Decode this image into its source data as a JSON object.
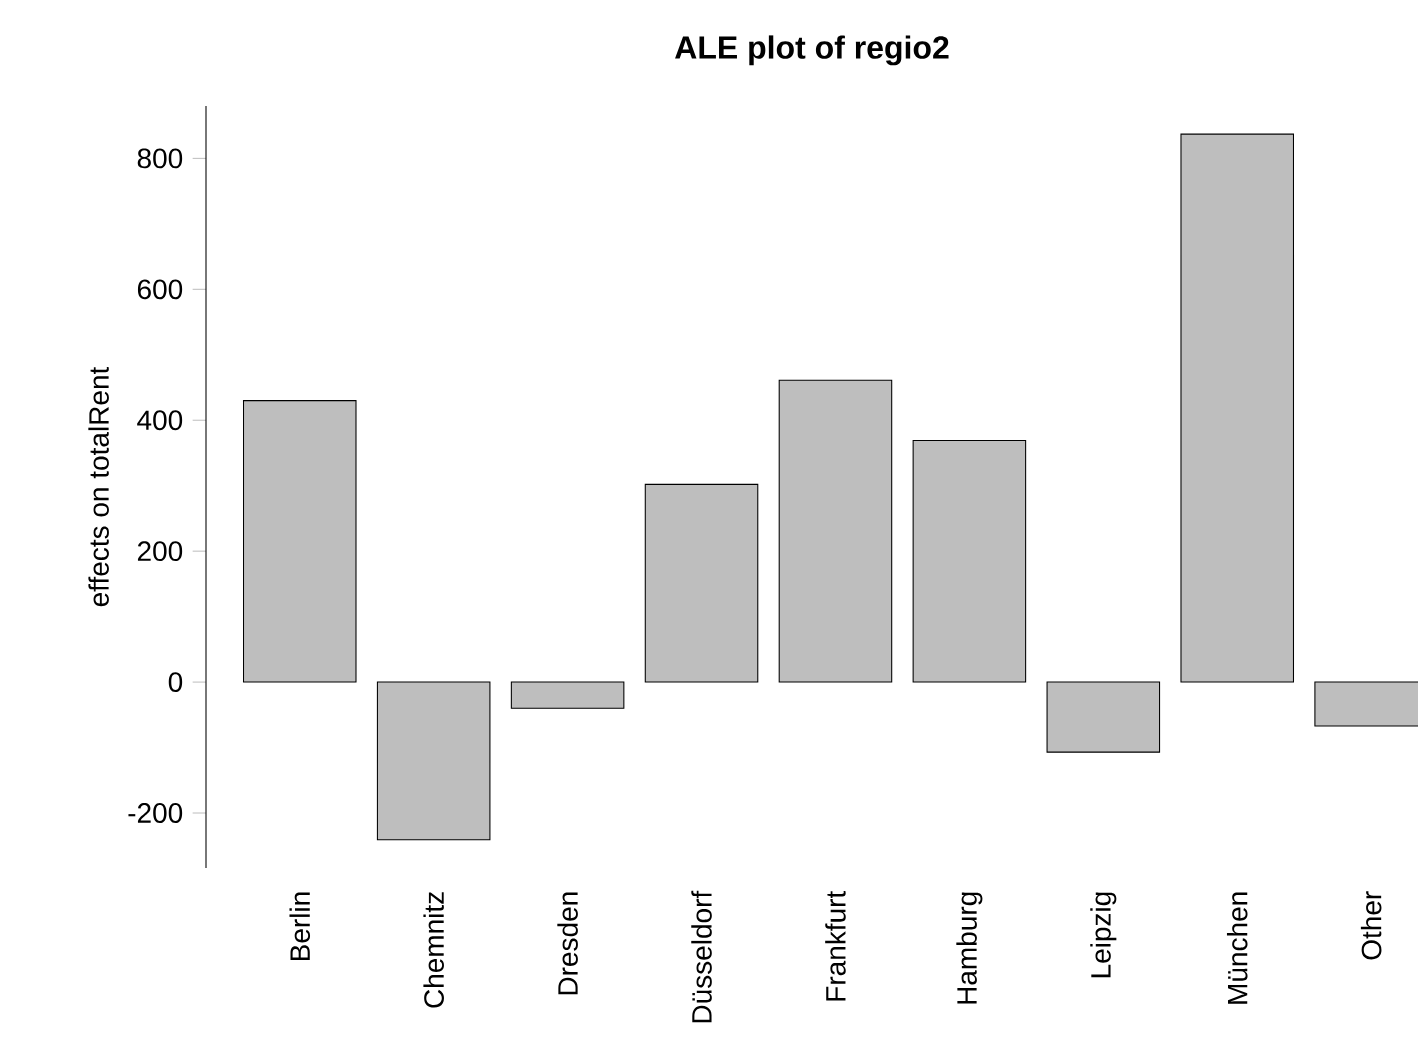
{
  "chart_data": {
    "type": "bar",
    "title": "ALE plot of regio2",
    "ylabel": "effects on totalRent",
    "categories": [
      "Berlin",
      "Chemnitz",
      "Dresden",
      "Düsseldorf",
      "Frankfurt",
      "Hamburg",
      "Leipzig",
      "München",
      "Other"
    ],
    "values": [
      430,
      -241,
      -40,
      302,
      461,
      369,
      -107,
      837,
      -67
    ],
    "color": "#bebebe",
    "ylim": [
      -284,
      880
    ],
    "yticks": [
      -200,
      0,
      200,
      400,
      600,
      800
    ],
    "grid": false
  }
}
